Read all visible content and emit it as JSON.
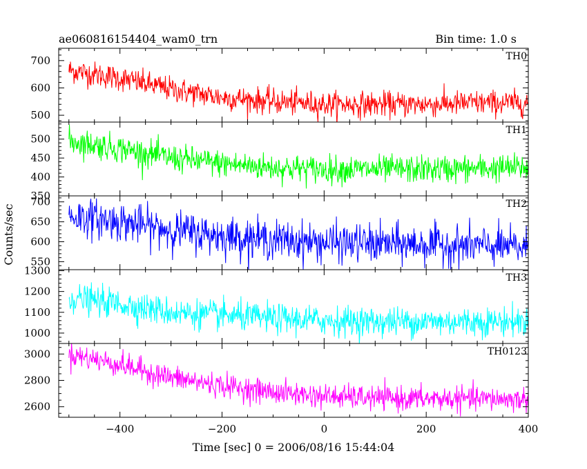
{
  "chart_data": {
    "type": "line",
    "title": "ae060816154404_wam0_trn",
    "subtitle": "Bin time: 1.0 s",
    "xlabel": "Time [sec] 0 = 2006/08/16 15:44:04",
    "ylabel": "Counts/sec",
    "xlim": [
      -520,
      400
    ],
    "x_ticks": [
      -400,
      -200,
      0,
      200,
      400
    ],
    "x_start": -500,
    "x_end": 400,
    "x_step": 1,
    "panels": [
      {
        "name": "TH0",
        "color": "#ff0000",
        "ylim": [
          475,
          745
        ],
        "y_ticks": [
          500,
          600,
          700
        ],
        "trend": [
          [
            -500,
            665
          ],
          [
            -400,
            635
          ],
          [
            -300,
            595
          ],
          [
            -200,
            565
          ],
          [
            -100,
            550
          ],
          [
            0,
            540
          ],
          [
            100,
            540
          ],
          [
            200,
            540
          ],
          [
            300,
            545
          ],
          [
            400,
            545
          ]
        ],
        "noise": 23
      },
      {
        "name": "TH1",
        "color": "#00ff00",
        "ylim": [
          350,
          545
        ],
        "y_ticks": [
          350,
          400,
          450,
          500
        ],
        "trend": [
          [
            -500,
            495
          ],
          [
            -400,
            475
          ],
          [
            -300,
            450
          ],
          [
            -200,
            435
          ],
          [
            -100,
            425
          ],
          [
            0,
            420
          ],
          [
            100,
            420
          ],
          [
            200,
            420
          ],
          [
            300,
            422
          ],
          [
            400,
            425
          ]
        ],
        "noise": 18
      },
      {
        "name": "TH2",
        "color": "#0000ff",
        "ylim": [
          530,
          715
        ],
        "y_ticks": [
          550,
          600,
          650,
          700
        ],
        "trend": [
          [
            -500,
            665
          ],
          [
            -400,
            650
          ],
          [
            -300,
            630
          ],
          [
            -200,
            615
          ],
          [
            -100,
            605
          ],
          [
            0,
            598
          ],
          [
            100,
            595
          ],
          [
            200,
            593
          ],
          [
            300,
            590
          ],
          [
            400,
            585
          ]
        ],
        "noise": 24
      },
      {
        "name": "TH3",
        "color": "#00ffff",
        "ylim": [
          950,
          1305
        ],
        "y_ticks": [
          1000,
          1100,
          1200,
          1300
        ],
        "trend": [
          [
            -500,
            1170
          ],
          [
            -400,
            1140
          ],
          [
            -300,
            1100
          ],
          [
            -200,
            1085
          ],
          [
            -100,
            1070
          ],
          [
            0,
            1060
          ],
          [
            100,
            1055
          ],
          [
            200,
            1055
          ],
          [
            300,
            1055
          ],
          [
            400,
            1055
          ]
        ],
        "noise": 35
      },
      {
        "name": "TH0123",
        "color": "#ff00ff",
        "ylim": [
          2520,
          3080
        ],
        "y_ticks": [
          2600,
          2800,
          3000
        ],
        "trend": [
          [
            -500,
            3000
          ],
          [
            -400,
            2920
          ],
          [
            -300,
            2820
          ],
          [
            -200,
            2760
          ],
          [
            -100,
            2710
          ],
          [
            0,
            2680
          ],
          [
            100,
            2665
          ],
          [
            200,
            2660
          ],
          [
            300,
            2660
          ],
          [
            400,
            2655
          ]
        ],
        "noise": 45
      }
    ]
  }
}
